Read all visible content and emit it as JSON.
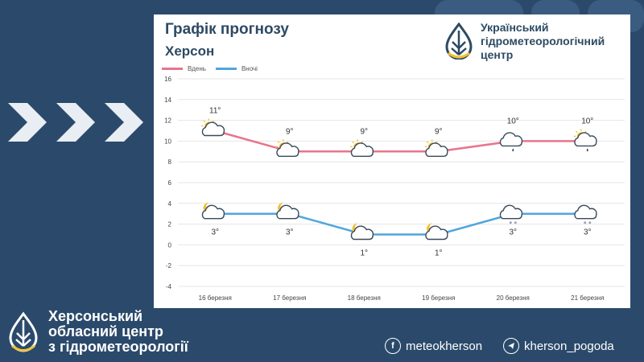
{
  "card": {
    "title": "Графік прогнозу",
    "subtitle": "Херсон",
    "brand_lines": [
      "Український",
      "гідрометеорологічний",
      "центр"
    ]
  },
  "legend": {
    "day": "Вдень",
    "night": "Вночі"
  },
  "colors": {
    "background": "#2b4a6b",
    "day_line": "#e8748c",
    "night_line": "#4fa6dc",
    "brand_blue": "#2d4a63",
    "brand_yellow": "#f2c230",
    "grid": "#e6e6e6"
  },
  "chart_data": {
    "type": "line",
    "categories": [
      "16 березня",
      "17 березня",
      "18 березня",
      "19 березня",
      "20 березня",
      "21 березня"
    ],
    "series": [
      {
        "name": "Вдень",
        "values": [
          11,
          9,
          9,
          9,
          10,
          10
        ],
        "labels": [
          "11°",
          "9°",
          "9°",
          "9°",
          "10°",
          "10°"
        ],
        "icons": [
          "sun-cloud-icon",
          "sun-cloud-icon",
          "sun-cloud-icon",
          "sun-cloud-icon",
          "cloud-rain-icon",
          "sun-cloud-rain-icon"
        ]
      },
      {
        "name": "Вночі",
        "values": [
          3,
          3,
          1,
          1,
          3,
          3
        ],
        "labels": [
          "3°",
          "3°",
          "1°",
          "1°",
          "3°",
          "3°"
        ],
        "icons": [
          "moon-cloud-icon",
          "moon-cloud-icon",
          "moon-cloud-icon",
          "moon-cloud-icon",
          "cloud-sleet-icon",
          "cloud-sleet-icon"
        ]
      }
    ],
    "yticks": [
      "16",
      "14",
      "12",
      "10",
      "8",
      "6",
      "4",
      "2",
      "0",
      "-2",
      "-4"
    ],
    "ylim": [
      -4,
      16
    ],
    "grid": true,
    "legend_position": "top-left"
  },
  "footer": {
    "name_lines": [
      "Херсонський",
      "обласний центр",
      "з гідрометеорології"
    ],
    "facebook_handle": "meteokherson",
    "telegram_handle": "kherson_pogoda",
    "facebook_icon": "facebook-icon",
    "telegram_icon": "telegram-icon"
  }
}
